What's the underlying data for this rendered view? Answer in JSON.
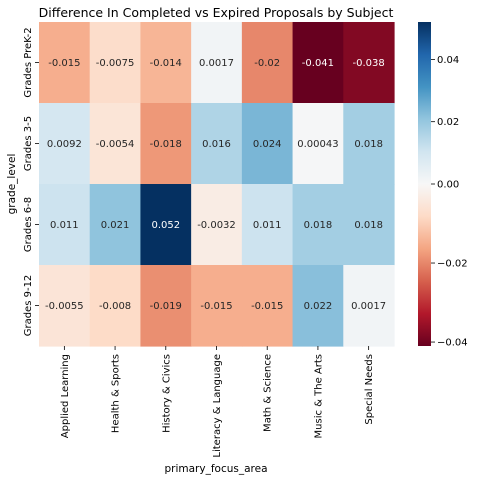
{
  "chart_data": {
    "type": "heatmap",
    "title": "Difference In Completed vs Expired Proposals by Subject",
    "xlabel": "primary_focus_area",
    "ylabel": "grade_level",
    "x_categories": [
      "Applied Learning",
      "Health & Sports",
      "History & Civics",
      "Literacy & Language",
      "Math & Science",
      "Music & The Arts",
      "Special Needs"
    ],
    "y_categories": [
      "Grades PreK-2",
      "Grades 3-5",
      "Grades 6-8",
      "Grades 9-12"
    ],
    "values": [
      [
        -0.015,
        -0.0075,
        -0.014,
        0.0017,
        -0.02,
        -0.041,
        -0.038
      ],
      [
        0.0092,
        -0.0054,
        -0.018,
        0.016,
        0.024,
        0.00043,
        0.018
      ],
      [
        0.011,
        0.021,
        0.052,
        -0.0032,
        0.011,
        0.018,
        0.018
      ],
      [
        -0.0055,
        -0.008,
        -0.019,
        -0.015,
        -0.015,
        0.022,
        0.0017
      ]
    ],
    "cell_labels": [
      [
        "-0.015",
        "-0.0075",
        "-0.014",
        "0.0017",
        "-0.02",
        "-0.041",
        "-0.038"
      ],
      [
        "0.0092",
        "-0.0054",
        "-0.018",
        "0.016",
        "0.024",
        "0.00043",
        "0.018"
      ],
      [
        "0.011",
        "0.021",
        "0.052",
        "-0.0032",
        "0.011",
        "0.018",
        "0.018"
      ],
      [
        "-0.0055",
        "-0.008",
        "-0.019",
        "-0.015",
        "-0.015",
        "0.022",
        "0.0017"
      ]
    ],
    "colormap": "RdBu",
    "vmin": -0.041,
    "vmax": 0.052,
    "center": 0,
    "colorbar_ticks": [
      0.04,
      0.02,
      0.0,
      -0.02,
      -0.04
    ],
    "colorbar_tick_labels": [
      "0.04",
      "0.02",
      "0.00",
      "−0.02",
      "−0.04"
    ],
    "colormap_stops": [
      "#67001f",
      "#b2182b",
      "#d6604d",
      "#f4a582",
      "#fddbc7",
      "#f7f7f7",
      "#d1e5f0",
      "#92c5de",
      "#4393c3",
      "#2166ac",
      "#053061"
    ]
  }
}
